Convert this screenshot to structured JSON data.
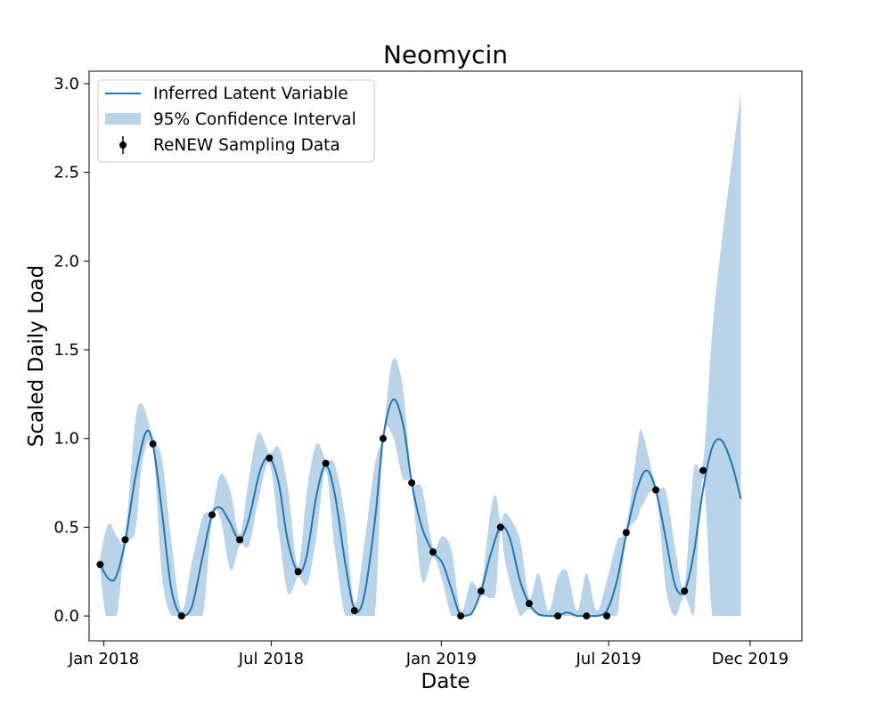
{
  "chart_data": {
    "type": "line",
    "title": "Neomycin",
    "xlabel": "Date",
    "ylabel": "Scaled Daily Load",
    "xlim": [
      "2017-12-16",
      "2020-01-26"
    ],
    "ylim": [
      -0.14,
      3.07
    ],
    "x_ticks": [
      {
        "date": "2018-01-01",
        "label": "Jan 2018"
      },
      {
        "date": "2018-07-01",
        "label": "Jul 2018"
      },
      {
        "date": "2019-01-01",
        "label": "Jan 2019"
      },
      {
        "date": "2019-07-01",
        "label": "Jul 2019"
      },
      {
        "date": "2019-12-01",
        "label": "Dec 2019"
      }
    ],
    "y_ticks": [
      {
        "value": 0.0,
        "label": "0.0"
      },
      {
        "value": 0.5,
        "label": "0.5"
      },
      {
        "value": 1.0,
        "label": "1.0"
      },
      {
        "value": 1.5,
        "label": "1.5"
      },
      {
        "value": 2.0,
        "label": "2.0"
      },
      {
        "value": 2.5,
        "label": "2.5"
      },
      {
        "value": 3.0,
        "label": "3.0"
      }
    ],
    "grid": false,
    "legend_position": "top-left",
    "colors": {
      "line": "#1f77b4",
      "band": "#b9d4e8",
      "points": "#000000"
    },
    "series": [
      {
        "name": "Inferred Latent Variable",
        "kind": "line",
        "points": [
          [
            "2017-12-28",
            0.29
          ],
          [
            "2018-01-06",
            0.21
          ],
          [
            "2018-01-14",
            0.22
          ],
          [
            "2018-01-24",
            0.42
          ],
          [
            "2018-02-04",
            0.78
          ],
          [
            "2018-02-15",
            1.03
          ],
          [
            "2018-02-23",
            0.97
          ],
          [
            "2018-03-05",
            0.58
          ],
          [
            "2018-03-15",
            0.15
          ],
          [
            "2018-03-26",
            0.0
          ],
          [
            "2018-04-06",
            0.05
          ],
          [
            "2018-04-18",
            0.34
          ],
          [
            "2018-04-28",
            0.57
          ],
          [
            "2018-05-07",
            0.61
          ],
          [
            "2018-05-17",
            0.53
          ],
          [
            "2018-05-28",
            0.43
          ],
          [
            "2018-06-07",
            0.55
          ],
          [
            "2018-06-19",
            0.82
          ],
          [
            "2018-06-29",
            0.89
          ],
          [
            "2018-07-09",
            0.75
          ],
          [
            "2018-07-19",
            0.42
          ],
          [
            "2018-07-30",
            0.25
          ],
          [
            "2018-08-08",
            0.33
          ],
          [
            "2018-08-19",
            0.68
          ],
          [
            "2018-08-29",
            0.85
          ],
          [
            "2018-09-08",
            0.68
          ],
          [
            "2018-09-19",
            0.3
          ],
          [
            "2018-09-29",
            0.04
          ],
          [
            "2018-10-09",
            0.1
          ],
          [
            "2018-10-21",
            0.53
          ],
          [
            "2018-10-30",
            1.0
          ],
          [
            "2018-11-10",
            1.22
          ],
          [
            "2018-11-21",
            1.07
          ],
          [
            "2018-11-30",
            0.75
          ],
          [
            "2018-12-11",
            0.5
          ],
          [
            "2018-12-23",
            0.36
          ],
          [
            "2019-01-02",
            0.3
          ],
          [
            "2019-01-12",
            0.15
          ],
          [
            "2019-01-22",
            0.0
          ],
          [
            "2019-02-02",
            0.01
          ],
          [
            "2019-02-13",
            0.14
          ],
          [
            "2019-02-23",
            0.34
          ],
          [
            "2019-03-06",
            0.5
          ],
          [
            "2019-03-16",
            0.44
          ],
          [
            "2019-03-27",
            0.2
          ],
          [
            "2019-04-06",
            0.07
          ],
          [
            "2019-04-16",
            0.01
          ],
          [
            "2019-04-27",
            0.0
          ],
          [
            "2019-05-07",
            0.0
          ],
          [
            "2019-05-17",
            0.02
          ],
          [
            "2019-05-28",
            0.0
          ],
          [
            "2019-06-07",
            0.0
          ],
          [
            "2019-06-18",
            0.0
          ],
          [
            "2019-06-29",
            0.03
          ],
          [
            "2019-07-10",
            0.2
          ],
          [
            "2019-07-20",
            0.46
          ],
          [
            "2019-08-01",
            0.72
          ],
          [
            "2019-08-11",
            0.82
          ],
          [
            "2019-08-21",
            0.71
          ],
          [
            "2019-09-01",
            0.43
          ],
          [
            "2019-09-11",
            0.17
          ],
          [
            "2019-09-21",
            0.14
          ],
          [
            "2019-10-01",
            0.35
          ],
          [
            "2019-10-11",
            0.71
          ],
          [
            "2019-10-21",
            0.95
          ],
          [
            "2019-10-31",
            0.99
          ],
          [
            "2019-11-11",
            0.86
          ],
          [
            "2019-11-21",
            0.66
          ]
        ]
      },
      {
        "name": "95% Confidence Interval",
        "kind": "band",
        "points": [
          [
            "2017-12-28",
            0.25,
            0.33
          ],
          [
            "2018-01-03",
            0.0,
            0.48
          ],
          [
            "2018-01-08",
            0.0,
            0.52
          ],
          [
            "2018-01-15",
            0.0,
            0.45
          ],
          [
            "2018-01-24",
            0.39,
            0.46
          ],
          [
            "2018-02-04",
            0.48,
            1.1
          ],
          [
            "2018-02-12",
            0.88,
            1.19
          ],
          [
            "2018-02-23",
            0.94,
            1.0
          ],
          [
            "2018-03-05",
            0.22,
            0.88
          ],
          [
            "2018-03-15",
            0.0,
            0.42
          ],
          [
            "2018-03-26",
            0.0,
            0.03
          ],
          [
            "2018-04-06",
            0.0,
            0.3
          ],
          [
            "2018-04-18",
            0.0,
            0.56
          ],
          [
            "2018-04-28",
            0.54,
            0.6
          ],
          [
            "2018-05-07",
            0.55,
            0.8
          ],
          [
            "2018-05-18",
            0.26,
            0.7
          ],
          [
            "2018-05-28",
            0.4,
            0.46
          ],
          [
            "2018-06-07",
            0.4,
            0.78
          ],
          [
            "2018-06-17",
            0.65,
            1.03
          ],
          [
            "2018-06-29",
            0.86,
            0.92
          ],
          [
            "2018-07-09",
            0.48,
            0.95
          ],
          [
            "2018-07-19",
            0.13,
            0.72
          ],
          [
            "2018-07-30",
            0.22,
            0.28
          ],
          [
            "2018-08-09",
            0.18,
            0.72
          ],
          [
            "2018-08-19",
            0.45,
            0.97
          ],
          [
            "2018-08-29",
            0.82,
            0.88
          ],
          [
            "2018-09-08",
            0.37,
            0.85
          ],
          [
            "2018-09-19",
            0.0,
            0.55
          ],
          [
            "2018-09-29",
            0.0,
            0.07
          ],
          [
            "2018-10-09",
            0.0,
            0.38
          ],
          [
            "2018-10-21",
            0.0,
            0.85
          ],
          [
            "2018-10-30",
            0.97,
            1.03
          ],
          [
            "2018-11-09",
            1.02,
            1.44
          ],
          [
            "2018-11-20",
            0.78,
            1.3
          ],
          [
            "2018-11-30",
            0.72,
            0.78
          ],
          [
            "2018-12-11",
            0.2,
            0.72
          ],
          [
            "2018-12-23",
            0.33,
            0.39
          ],
          [
            "2019-01-02",
            0.2,
            0.45
          ],
          [
            "2019-01-12",
            0.0,
            0.37
          ],
          [
            "2019-01-22",
            0.0,
            0.03
          ],
          [
            "2019-02-02",
            0.0,
            0.19
          ],
          [
            "2019-02-13",
            0.11,
            0.17
          ],
          [
            "2019-02-23",
            0.1,
            0.58
          ],
          [
            "2019-03-01",
            0.14,
            0.68
          ],
          [
            "2019-03-06",
            0.47,
            0.53
          ],
          [
            "2019-03-12",
            0.28,
            0.58
          ],
          [
            "2019-03-27",
            0.0,
            0.43
          ],
          [
            "2019-04-06",
            0.04,
            0.1
          ],
          [
            "2019-04-16",
            0.0,
            0.24
          ],
          [
            "2019-04-27",
            0.0,
            0.03
          ],
          [
            "2019-05-07",
            0.0,
            0.22
          ],
          [
            "2019-05-17",
            0.0,
            0.25
          ],
          [
            "2019-05-28",
            0.0,
            0.03
          ],
          [
            "2019-06-07",
            0.0,
            0.24
          ],
          [
            "2019-06-18",
            0.0,
            0.03
          ],
          [
            "2019-06-29",
            0.0,
            0.2
          ],
          [
            "2019-07-10",
            0.0,
            0.42
          ],
          [
            "2019-07-20",
            0.44,
            0.5
          ],
          [
            "2019-08-01",
            0.55,
            0.95
          ],
          [
            "2019-08-06",
            0.62,
            1.04
          ],
          [
            "2019-08-21",
            0.68,
            0.74
          ],
          [
            "2019-09-01",
            0.15,
            0.7
          ],
          [
            "2019-09-11",
            0.0,
            0.38
          ],
          [
            "2019-09-21",
            0.11,
            0.17
          ],
          [
            "2019-10-01",
            0.0,
            0.82
          ],
          [
            "2019-10-11",
            0.78,
            0.86
          ],
          [
            "2019-10-21",
            0.0,
            1.6
          ],
          [
            "2019-10-31",
            0.0,
            2.1
          ],
          [
            "2019-11-11",
            0.0,
            2.55
          ],
          [
            "2019-11-21",
            0.0,
            2.95
          ]
        ]
      },
      {
        "name": "ReNEW Sampling Data",
        "kind": "scatter",
        "points": [
          [
            "2017-12-28",
            0.29
          ],
          [
            "2018-01-24",
            0.43
          ],
          [
            "2018-02-23",
            0.97
          ],
          [
            "2018-03-26",
            0.0
          ],
          [
            "2018-04-28",
            0.57
          ],
          [
            "2018-05-28",
            0.43
          ],
          [
            "2018-06-29",
            0.89
          ],
          [
            "2018-07-30",
            0.25
          ],
          [
            "2018-08-29",
            0.86
          ],
          [
            "2018-09-29",
            0.03
          ],
          [
            "2018-10-30",
            1.0
          ],
          [
            "2018-11-30",
            0.75
          ],
          [
            "2018-12-23",
            0.36
          ],
          [
            "2019-01-22",
            0.0
          ],
          [
            "2019-02-13",
            0.14
          ],
          [
            "2019-03-06",
            0.5
          ],
          [
            "2019-04-06",
            0.07
          ],
          [
            "2019-05-07",
            0.0
          ],
          [
            "2019-06-07",
            0.0
          ],
          [
            "2019-06-29",
            0.0
          ],
          [
            "2019-07-20",
            0.47
          ],
          [
            "2019-08-21",
            0.71
          ],
          [
            "2019-09-21",
            0.14
          ],
          [
            "2019-10-11",
            0.82
          ]
        ]
      }
    ]
  }
}
